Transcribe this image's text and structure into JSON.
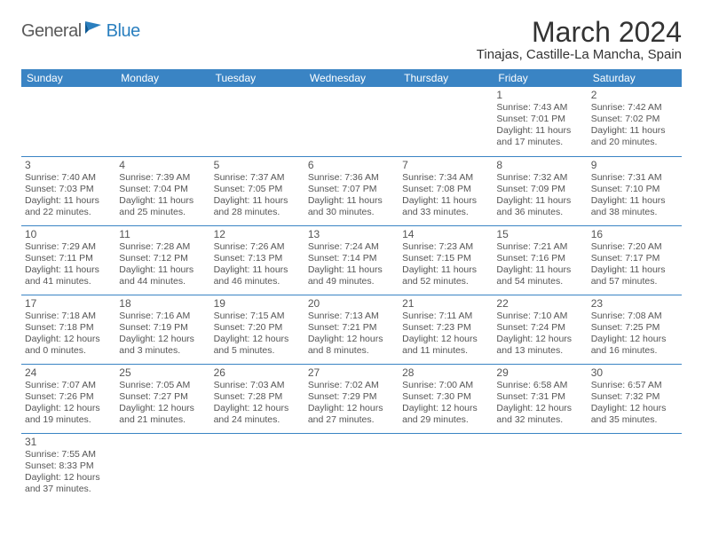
{
  "logo": {
    "part1": "General",
    "part2": "Blue"
  },
  "title": "March 2024",
  "location": "Tinajas, Castille-La Mancha, Spain",
  "colors": {
    "accent": "#3a84c4",
    "logo_gray": "#5a5a5a",
    "logo_blue": "#2a7fbf",
    "text": "#555555",
    "bg": "#ffffff"
  },
  "daynames": [
    "Sunday",
    "Monday",
    "Tuesday",
    "Wednesday",
    "Thursday",
    "Friday",
    "Saturday"
  ],
  "weeks": [
    [
      null,
      null,
      null,
      null,
      null,
      {
        "n": "1",
        "sr": "Sunrise: 7:43 AM",
        "ss": "Sunset: 7:01 PM",
        "d1": "Daylight: 11 hours",
        "d2": "and 17 minutes."
      },
      {
        "n": "2",
        "sr": "Sunrise: 7:42 AM",
        "ss": "Sunset: 7:02 PM",
        "d1": "Daylight: 11 hours",
        "d2": "and 20 minutes."
      }
    ],
    [
      {
        "n": "3",
        "sr": "Sunrise: 7:40 AM",
        "ss": "Sunset: 7:03 PM",
        "d1": "Daylight: 11 hours",
        "d2": "and 22 minutes."
      },
      {
        "n": "4",
        "sr": "Sunrise: 7:39 AM",
        "ss": "Sunset: 7:04 PM",
        "d1": "Daylight: 11 hours",
        "d2": "and 25 minutes."
      },
      {
        "n": "5",
        "sr": "Sunrise: 7:37 AM",
        "ss": "Sunset: 7:05 PM",
        "d1": "Daylight: 11 hours",
        "d2": "and 28 minutes."
      },
      {
        "n": "6",
        "sr": "Sunrise: 7:36 AM",
        "ss": "Sunset: 7:07 PM",
        "d1": "Daylight: 11 hours",
        "d2": "and 30 minutes."
      },
      {
        "n": "7",
        "sr": "Sunrise: 7:34 AM",
        "ss": "Sunset: 7:08 PM",
        "d1": "Daylight: 11 hours",
        "d2": "and 33 minutes."
      },
      {
        "n": "8",
        "sr": "Sunrise: 7:32 AM",
        "ss": "Sunset: 7:09 PM",
        "d1": "Daylight: 11 hours",
        "d2": "and 36 minutes."
      },
      {
        "n": "9",
        "sr": "Sunrise: 7:31 AM",
        "ss": "Sunset: 7:10 PM",
        "d1": "Daylight: 11 hours",
        "d2": "and 38 minutes."
      }
    ],
    [
      {
        "n": "10",
        "sr": "Sunrise: 7:29 AM",
        "ss": "Sunset: 7:11 PM",
        "d1": "Daylight: 11 hours",
        "d2": "and 41 minutes."
      },
      {
        "n": "11",
        "sr": "Sunrise: 7:28 AM",
        "ss": "Sunset: 7:12 PM",
        "d1": "Daylight: 11 hours",
        "d2": "and 44 minutes."
      },
      {
        "n": "12",
        "sr": "Sunrise: 7:26 AM",
        "ss": "Sunset: 7:13 PM",
        "d1": "Daylight: 11 hours",
        "d2": "and 46 minutes."
      },
      {
        "n": "13",
        "sr": "Sunrise: 7:24 AM",
        "ss": "Sunset: 7:14 PM",
        "d1": "Daylight: 11 hours",
        "d2": "and 49 minutes."
      },
      {
        "n": "14",
        "sr": "Sunrise: 7:23 AM",
        "ss": "Sunset: 7:15 PM",
        "d1": "Daylight: 11 hours",
        "d2": "and 52 minutes."
      },
      {
        "n": "15",
        "sr": "Sunrise: 7:21 AM",
        "ss": "Sunset: 7:16 PM",
        "d1": "Daylight: 11 hours",
        "d2": "and 54 minutes."
      },
      {
        "n": "16",
        "sr": "Sunrise: 7:20 AM",
        "ss": "Sunset: 7:17 PM",
        "d1": "Daylight: 11 hours",
        "d2": "and 57 minutes."
      }
    ],
    [
      {
        "n": "17",
        "sr": "Sunrise: 7:18 AM",
        "ss": "Sunset: 7:18 PM",
        "d1": "Daylight: 12 hours",
        "d2": "and 0 minutes."
      },
      {
        "n": "18",
        "sr": "Sunrise: 7:16 AM",
        "ss": "Sunset: 7:19 PM",
        "d1": "Daylight: 12 hours",
        "d2": "and 3 minutes."
      },
      {
        "n": "19",
        "sr": "Sunrise: 7:15 AM",
        "ss": "Sunset: 7:20 PM",
        "d1": "Daylight: 12 hours",
        "d2": "and 5 minutes."
      },
      {
        "n": "20",
        "sr": "Sunrise: 7:13 AM",
        "ss": "Sunset: 7:21 PM",
        "d1": "Daylight: 12 hours",
        "d2": "and 8 minutes."
      },
      {
        "n": "21",
        "sr": "Sunrise: 7:11 AM",
        "ss": "Sunset: 7:23 PM",
        "d1": "Daylight: 12 hours",
        "d2": "and 11 minutes."
      },
      {
        "n": "22",
        "sr": "Sunrise: 7:10 AM",
        "ss": "Sunset: 7:24 PM",
        "d1": "Daylight: 12 hours",
        "d2": "and 13 minutes."
      },
      {
        "n": "23",
        "sr": "Sunrise: 7:08 AM",
        "ss": "Sunset: 7:25 PM",
        "d1": "Daylight: 12 hours",
        "d2": "and 16 minutes."
      }
    ],
    [
      {
        "n": "24",
        "sr": "Sunrise: 7:07 AM",
        "ss": "Sunset: 7:26 PM",
        "d1": "Daylight: 12 hours",
        "d2": "and 19 minutes."
      },
      {
        "n": "25",
        "sr": "Sunrise: 7:05 AM",
        "ss": "Sunset: 7:27 PM",
        "d1": "Daylight: 12 hours",
        "d2": "and 21 minutes."
      },
      {
        "n": "26",
        "sr": "Sunrise: 7:03 AM",
        "ss": "Sunset: 7:28 PM",
        "d1": "Daylight: 12 hours",
        "d2": "and 24 minutes."
      },
      {
        "n": "27",
        "sr": "Sunrise: 7:02 AM",
        "ss": "Sunset: 7:29 PM",
        "d1": "Daylight: 12 hours",
        "d2": "and 27 minutes."
      },
      {
        "n": "28",
        "sr": "Sunrise: 7:00 AM",
        "ss": "Sunset: 7:30 PM",
        "d1": "Daylight: 12 hours",
        "d2": "and 29 minutes."
      },
      {
        "n": "29",
        "sr": "Sunrise: 6:58 AM",
        "ss": "Sunset: 7:31 PM",
        "d1": "Daylight: 12 hours",
        "d2": "and 32 minutes."
      },
      {
        "n": "30",
        "sr": "Sunrise: 6:57 AM",
        "ss": "Sunset: 7:32 PM",
        "d1": "Daylight: 12 hours",
        "d2": "and 35 minutes."
      }
    ],
    [
      {
        "n": "31",
        "sr": "Sunrise: 7:55 AM",
        "ss": "Sunset: 8:33 PM",
        "d1": "Daylight: 12 hours",
        "d2": "and 37 minutes."
      },
      null,
      null,
      null,
      null,
      null,
      null
    ]
  ]
}
